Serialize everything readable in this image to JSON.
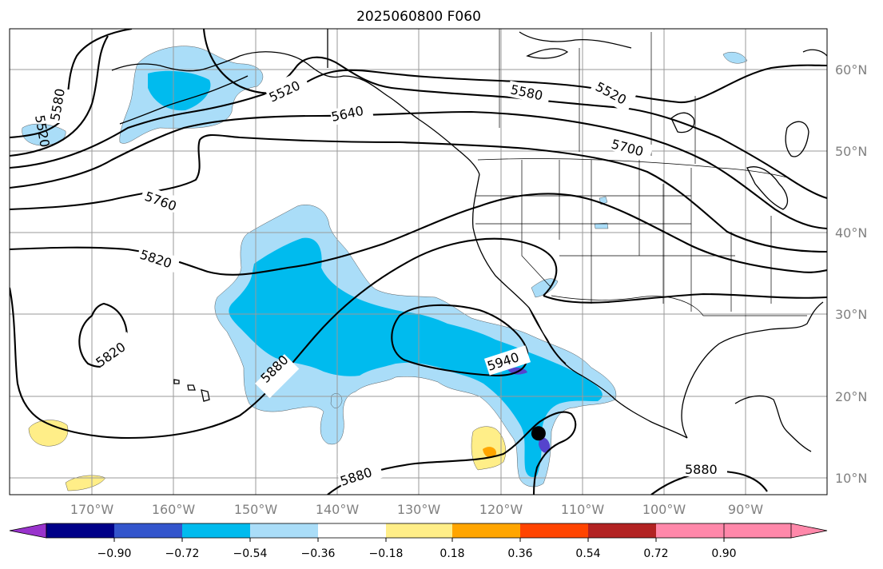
{
  "title": "2025060800 F060",
  "map": {
    "lon_ticks": [
      "170°W",
      "160°W",
      "150°W",
      "140°W",
      "130°W",
      "120°W",
      "110°W",
      "100°W",
      "90°W"
    ],
    "lat_ticks": [
      "60°N",
      "50°N",
      "40°N",
      "30°N",
      "20°N",
      "10°N"
    ],
    "contour_labels": [
      "5520",
      "5580",
      "5520",
      "5640",
      "5580",
      "5520",
      "5700",
      "5760",
      "5820",
      "5820",
      "5880",
      "5940",
      "5880",
      "5880"
    ],
    "marker": {
      "lon": -115.3,
      "lat": 15.5
    }
  },
  "colorbar": {
    "ticks": [
      "−0.90",
      "−0.72",
      "−0.54",
      "−0.36",
      "−0.18",
      "0.18",
      "0.36",
      "0.54",
      "0.72",
      "0.90"
    ],
    "colors": [
      "#9933cc",
      "#000088",
      "#3355cc",
      "#00bbee",
      "#aaddf8",
      "#ffffff",
      "#ffee88",
      "#ffa500",
      "#ff4400",
      "#b22222",
      "#ff88aa"
    ]
  }
}
